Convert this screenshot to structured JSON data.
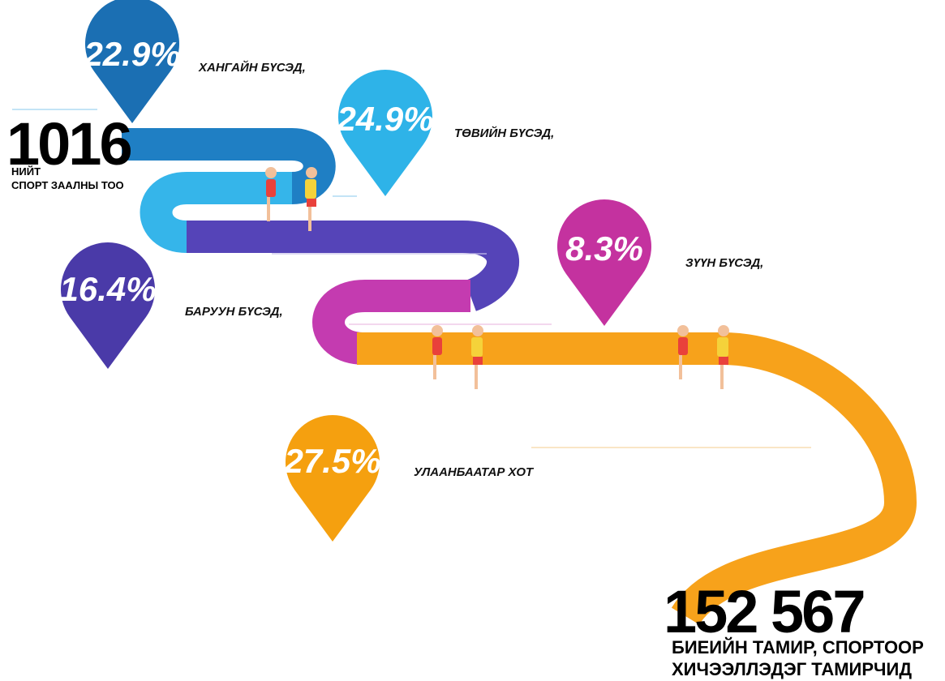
{
  "total": {
    "value": "1016",
    "label_lines": [
      "НИЙТ",
      "СПОРТ ЗААЛНЫ ТОО"
    ]
  },
  "regions": [
    {
      "percent": "22.9%",
      "label": "ХАНГАЙН БҮСЭД,"
    },
    {
      "percent": "24.9%",
      "label": "ТӨВИЙН БҮСЭД,"
    },
    {
      "percent": "16.4%",
      "label": "БАРУУН БҮСЭД,"
    },
    {
      "percent": "8.3%",
      "label": "ЗҮҮН БҮСЭД,"
    },
    {
      "percent": "27.5%",
      "label": "УЛААНБААТАР ХОТ"
    }
  ],
  "athletes": {
    "value": "152 567",
    "label_lines": [
      "БИЕИЙН ТАМИР, СПОРТООР",
      "ХИЧЭЭЛЛЭДЭГ ТАМИРЧИД"
    ]
  }
}
